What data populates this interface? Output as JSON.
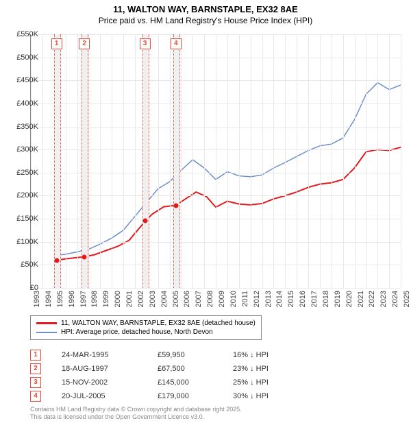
{
  "title_line1": "11, WALTON WAY, BARNSTAPLE, EX32 8AE",
  "title_line2": "Price paid vs. HM Land Registry's House Price Index (HPI)",
  "chart": {
    "type": "line",
    "background_color": "#ffffff",
    "grid_color": "#e8e8e8",
    "axis_color": "#888888",
    "ylim": [
      0,
      550000
    ],
    "ytick_step": 50000,
    "yticks": [
      "£0",
      "£50K",
      "£100K",
      "£150K",
      "£200K",
      "£250K",
      "£300K",
      "£350K",
      "£400K",
      "£450K",
      "£500K",
      "£550K"
    ],
    "xlim": [
      1993,
      2025
    ],
    "xticks": [
      1993,
      1994,
      1995,
      1996,
      1997,
      1998,
      1999,
      2000,
      2001,
      2002,
      2003,
      2004,
      2005,
      2006,
      2007,
      2008,
      2009,
      2010,
      2011,
      2012,
      2013,
      2014,
      2015,
      2016,
      2017,
      2018,
      2019,
      2020,
      2021,
      2022,
      2023,
      2024,
      2025
    ],
    "series": [
      {
        "name": "price_paid",
        "label": "11, WALTON WAY, BARNSTAPLE, EX32 8AE (detached house)",
        "color": "#e31a1c",
        "line_width": 2,
        "points": [
          [
            1995.2,
            59950
          ],
          [
            1996,
            63000
          ],
          [
            1997.6,
            67500
          ],
          [
            1998.5,
            72000
          ],
          [
            1999.5,
            81000
          ],
          [
            2000.5,
            90000
          ],
          [
            2001.5,
            103000
          ],
          [
            2002.9,
            145000
          ],
          [
            2003.5,
            160000
          ],
          [
            2004.5,
            176000
          ],
          [
            2005.55,
            179000
          ],
          [
            2006.5,
            195000
          ],
          [
            2007.3,
            208000
          ],
          [
            2008.2,
            198000
          ],
          [
            2009,
            175000
          ],
          [
            2010,
            188000
          ],
          [
            2011,
            182000
          ],
          [
            2012,
            180000
          ],
          [
            2013,
            183000
          ],
          [
            2014,
            193000
          ],
          [
            2015,
            200000
          ],
          [
            2016,
            208000
          ],
          [
            2017,
            218000
          ],
          [
            2018,
            225000
          ],
          [
            2019,
            228000
          ],
          [
            2020,
            235000
          ],
          [
            2021,
            260000
          ],
          [
            2022,
            295000
          ],
          [
            2023,
            300000
          ],
          [
            2024,
            298000
          ],
          [
            2025,
            305000
          ]
        ]
      },
      {
        "name": "hpi",
        "label": "HPI: Average price, detached house, North Devon",
        "color": "#6b8fc9",
        "line_width": 1.5,
        "points": [
          [
            1995,
            70000
          ],
          [
            1996,
            73000
          ],
          [
            1997,
            78000
          ],
          [
            1998,
            84000
          ],
          [
            1999,
            95000
          ],
          [
            2000,
            108000
          ],
          [
            2001,
            125000
          ],
          [
            2002,
            155000
          ],
          [
            2003,
            185000
          ],
          [
            2004,
            215000
          ],
          [
            2005,
            230000
          ],
          [
            2006,
            255000
          ],
          [
            2007,
            278000
          ],
          [
            2008,
            260000
          ],
          [
            2009,
            235000
          ],
          [
            2010,
            252000
          ],
          [
            2011,
            243000
          ],
          [
            2012,
            241000
          ],
          [
            2013,
            245000
          ],
          [
            2014,
            260000
          ],
          [
            2015,
            272000
          ],
          [
            2016,
            285000
          ],
          [
            2017,
            298000
          ],
          [
            2018,
            308000
          ],
          [
            2019,
            312000
          ],
          [
            2020,
            325000
          ],
          [
            2021,
            365000
          ],
          [
            2022,
            420000
          ],
          [
            2023,
            445000
          ],
          [
            2024,
            430000
          ],
          [
            2025,
            440000
          ]
        ]
      }
    ],
    "markers": [
      {
        "n": "1",
        "x": 1995.23,
        "date": "24-MAR-1995",
        "price": "£59,950",
        "diff": "16% ↓ HPI",
        "price_val": 59950
      },
      {
        "n": "2",
        "x": 1997.63,
        "date": "18-AUG-1997",
        "price": "£67,500",
        "diff": "23% ↓ HPI",
        "price_val": 67500
      },
      {
        "n": "3",
        "x": 2002.87,
        "date": "15-NOV-2002",
        "price": "£145,000",
        "diff": "25% ↓ HPI",
        "price_val": 145000
      },
      {
        "n": "4",
        "x": 2005.55,
        "date": "20-JUL-2005",
        "price": "£179,000",
        "diff": "30% ↓ HPI",
        "price_val": 179000
      }
    ],
    "marker_color": "#e74c3c",
    "marker_band_color": "#f0f0f0",
    "label_fontsize": 11
  },
  "footer_line1": "Contains HM Land Registry data © Crown copyright and database right 2025.",
  "footer_line2": "This data is licensed under the Open Government Licence v3.0."
}
